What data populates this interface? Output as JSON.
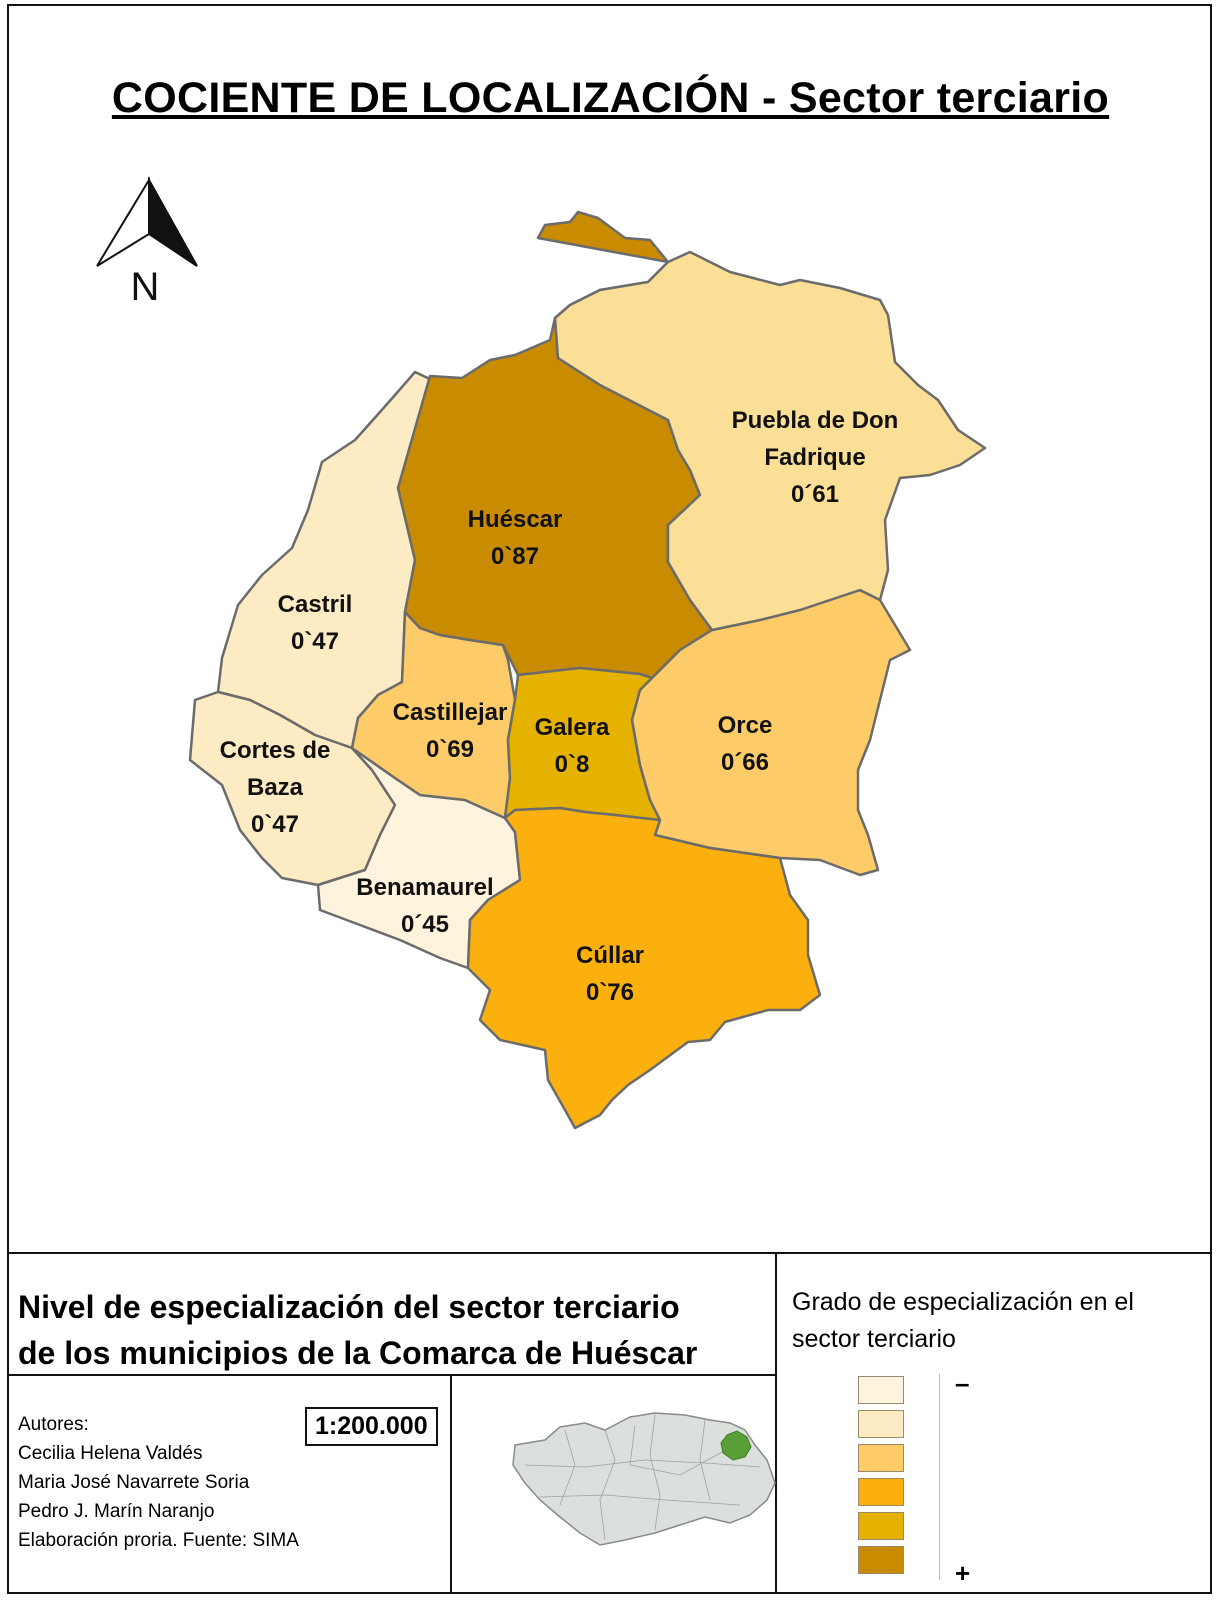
{
  "title": "COCIENTE DE LOCALIZACIÓN - Sector terciario",
  "north_label": "N",
  "municipalities": [
    {
      "name_lines": [
        "Huéscar"
      ],
      "value": "0`87",
      "color": "#C98B00"
    },
    {
      "name_lines": [
        "Puebla de Don",
        "Fadrique"
      ],
      "value": "0´61",
      "color": "#FCDF96"
    },
    {
      "name_lines": [
        "Castril"
      ],
      "value": "0`47",
      "color": "#FDEBC3"
    },
    {
      "name_lines": [
        "Castillejar"
      ],
      "value": "0`69",
      "color": "#FDCC68"
    },
    {
      "name_lines": [
        "Galera"
      ],
      "value": "0`8",
      "color": "#E6B200"
    },
    {
      "name_lines": [
        "Orce"
      ],
      "value": "0´66",
      "color": "#FDCC68"
    },
    {
      "name_lines": [
        "Cortes de",
        "Baza"
      ],
      "value": "0`47",
      "color": "#FDEBC3"
    },
    {
      "name_lines": [
        "Benamaurel"
      ],
      "value": "0´45",
      "color": "#FEF3DC"
    },
    {
      "name_lines": [
        "Cúllar"
      ],
      "value": "0`76",
      "color": "#FBB00E"
    }
  ],
  "description": {
    "line1": "Nivel de especialización del sector  terciario",
    "line2": "de los municipios de la Comarca de Huéscar"
  },
  "legend": {
    "title_line1": "Grado de especialización en el",
    "title_line2": "sector  terciario",
    "min_label": "–",
    "max_label": "+",
    "classes": [
      "#FEF3DC",
      "#FDEBC3",
      "#FDCC68",
      "#FBB00E",
      "#E6B200",
      "#C98B00"
    ]
  },
  "scale": "1:200.000",
  "credits": {
    "label": "Autores:",
    "authors": [
      "Cecilia Helena Valdés",
      "Maria José Navarrete Soria",
      "Pedro J. Marín Naranjo"
    ],
    "source": "Elaboración proria. Fuente: SIMA"
  },
  "locator": {
    "region_color": "#DCE0DC",
    "highlight_color": "#5A9E38"
  }
}
